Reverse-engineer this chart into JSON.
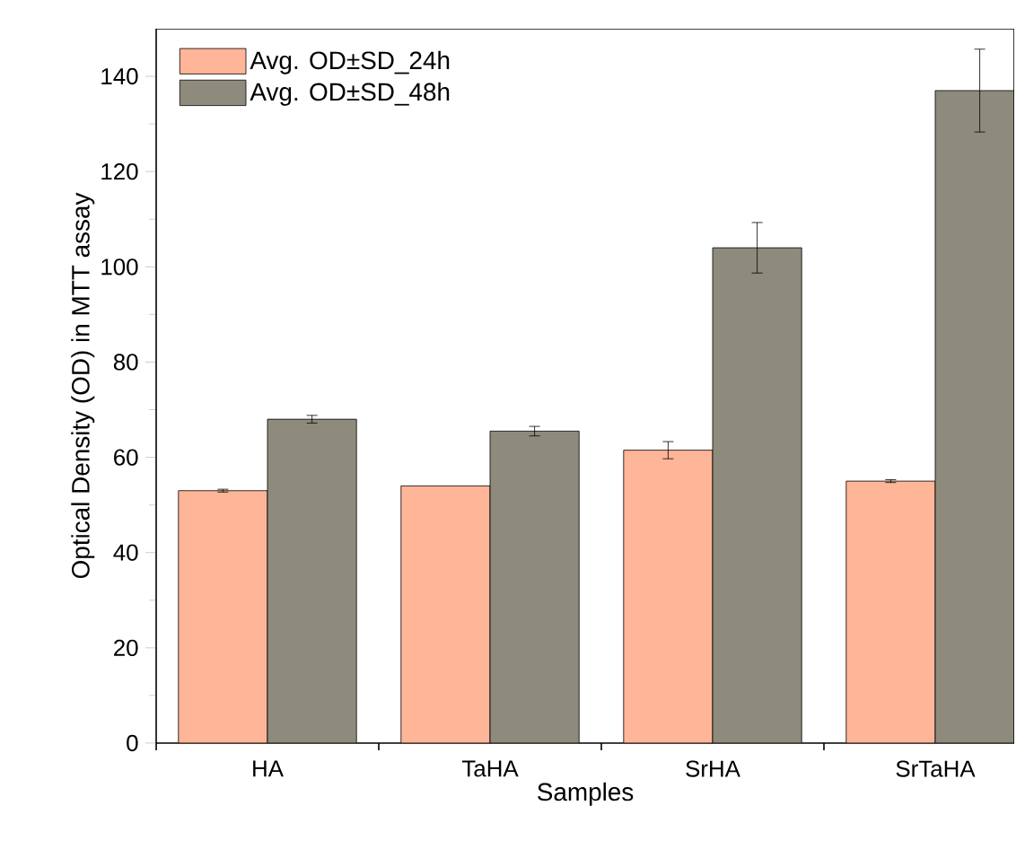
{
  "chart_data": {
    "type": "bar",
    "xlabel": "Samples",
    "ylabel": "Optical Density (OD) in MTT assay",
    "categories": [
      "HA",
      "TaHA",
      "SrHA",
      "SrTaHA"
    ],
    "series": [
      {
        "name": "Avg. OD±SD_24h",
        "color": "#ffb597",
        "values": [
          53,
          54,
          61.5,
          55
        ],
        "errors": [
          0.3,
          null,
          1.8,
          0.3
        ]
      },
      {
        "name": "Avg. OD±SD_48h",
        "color": "#8e8b7c",
        "values": [
          68,
          65.5,
          104,
          137
        ],
        "errors": [
          0.8,
          1,
          5.3,
          8.7
        ]
      }
    ],
    "ylim": [
      0,
      150
    ],
    "yticks": [
      0,
      20,
      40,
      60,
      80,
      100,
      120,
      140
    ],
    "legend": "top left",
    "grid": false
  }
}
